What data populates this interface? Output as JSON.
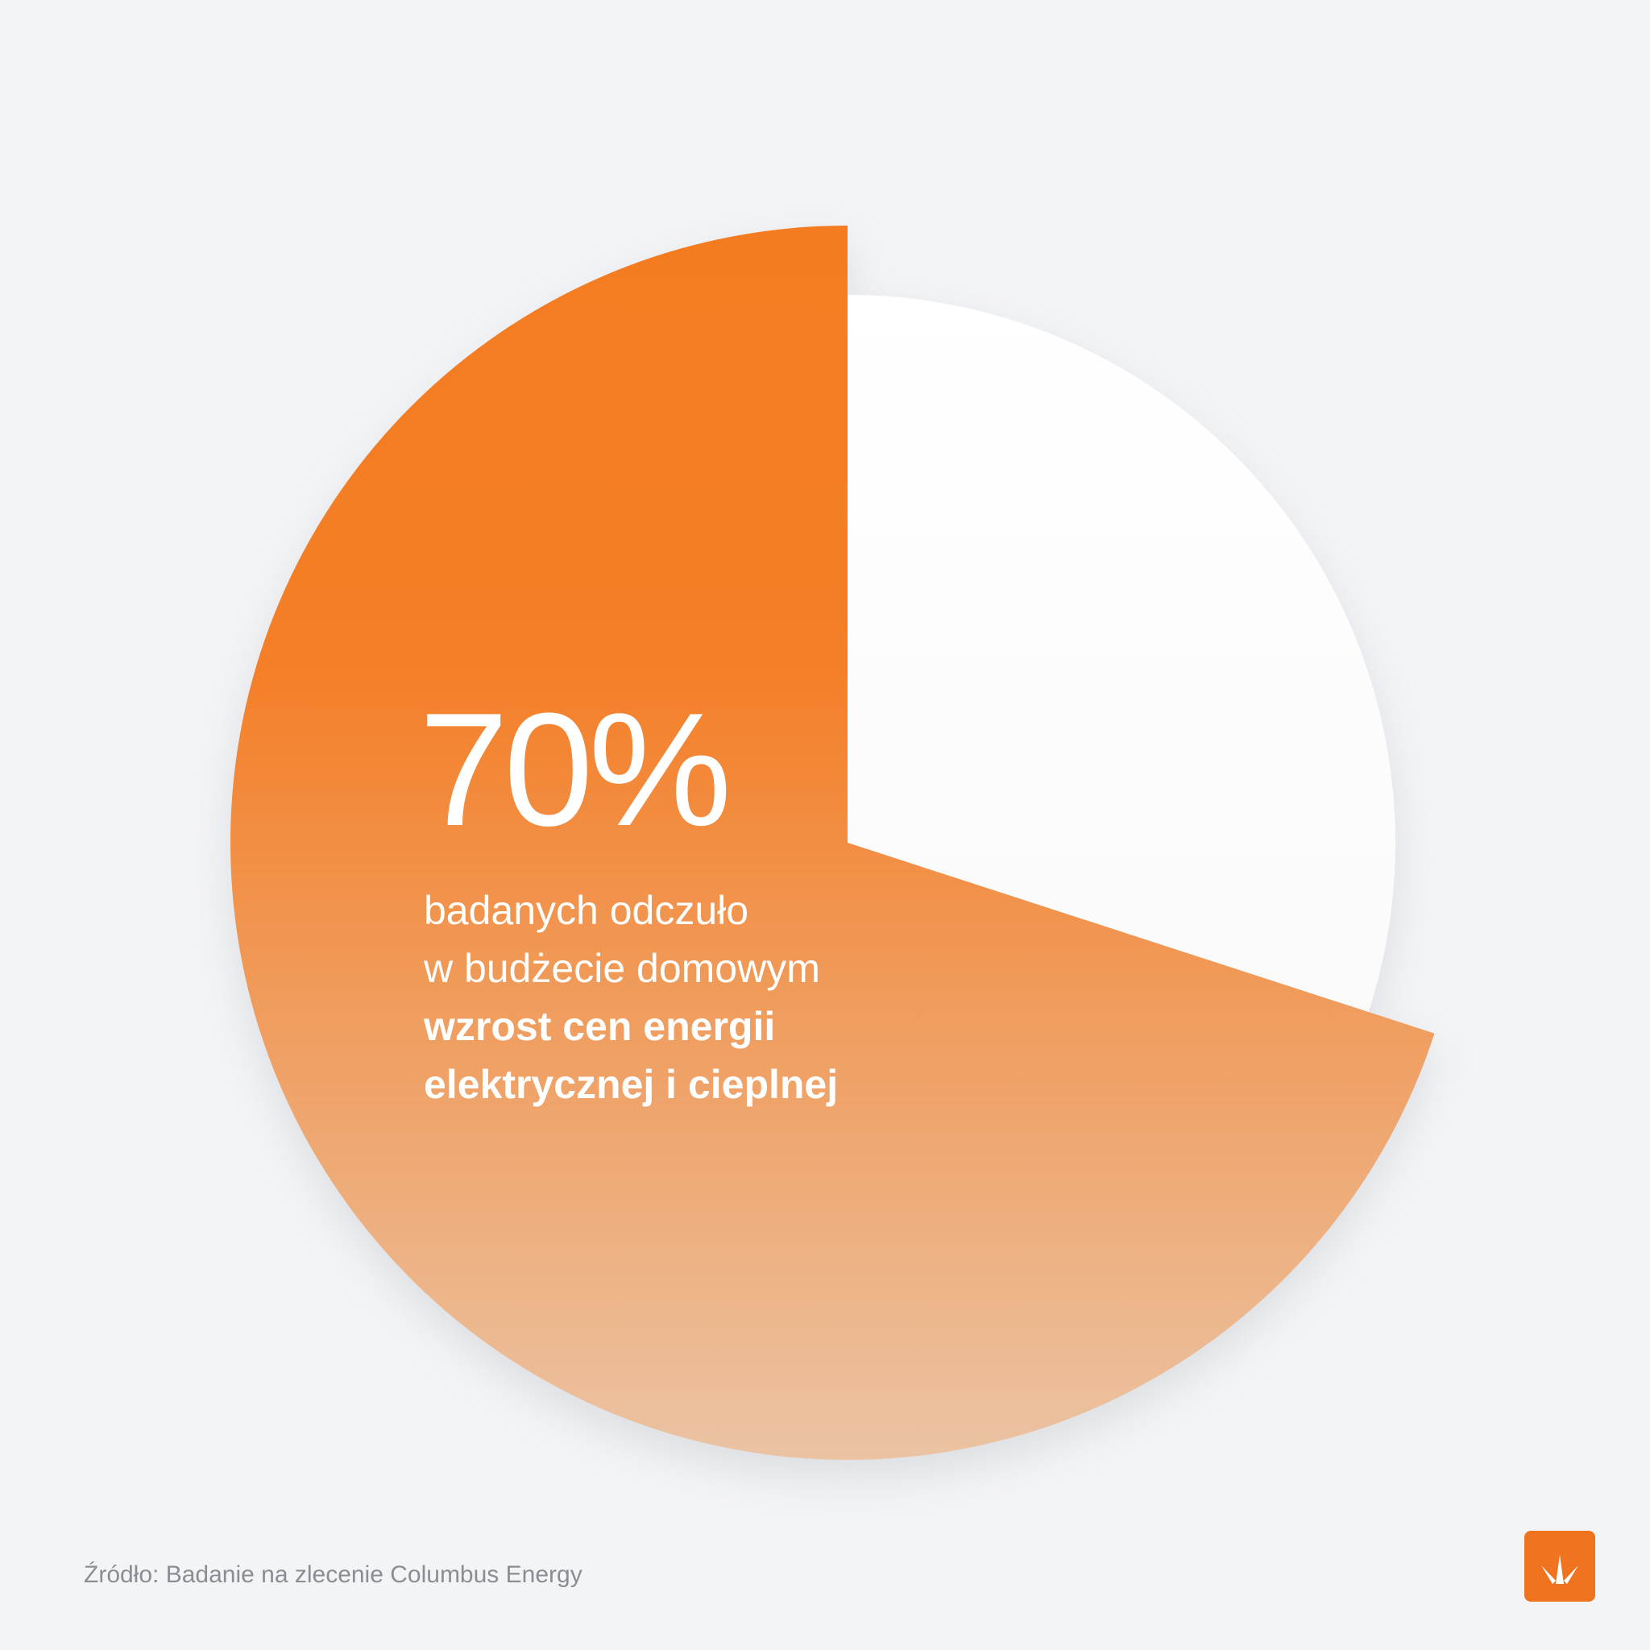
{
  "chart_data": {
    "type": "pie",
    "values": [
      70,
      30
    ],
    "colors": [
      "#f47b20",
      "#ffffff"
    ],
    "data_labels": [
      "70%"
    ],
    "annotation_lines": [
      "badanych odczuło",
      "w budżecie domowym"
    ],
    "annotation_bold_lines": [
      "wzrost cen energii",
      "elektrycznej i cieplnej"
    ]
  },
  "footer": {
    "source": "Źródło: Badanie na zlecenie Columbus Energy"
  },
  "logo": {
    "icon": "columbus-energy-logo-icon",
    "color": "#f0731f"
  }
}
